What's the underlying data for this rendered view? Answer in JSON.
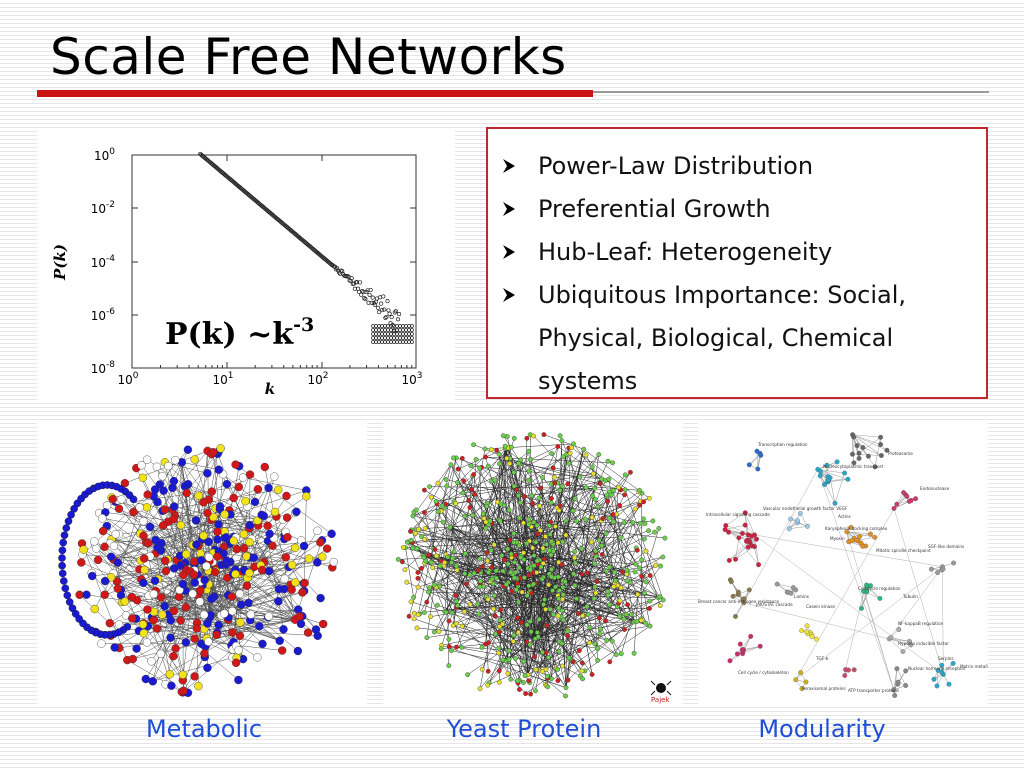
{
  "slide": {
    "title": "Scale Free Networks"
  },
  "plot": {
    "y_axis_label": "P(k)",
    "x_axis_label": "k",
    "formula_main": "P(k) ~k",
    "formula_exponent": "-3",
    "y_ticks": [
      {
        "base": "10",
        "exp": "0"
      },
      {
        "base": "10",
        "exp": "-2"
      },
      {
        "base": "10",
        "exp": "-4"
      },
      {
        "base": "10",
        "exp": "-6"
      },
      {
        "base": "10",
        "exp": "-8"
      }
    ],
    "x_ticks": [
      {
        "base": "10",
        "exp": "0"
      },
      {
        "base": "10",
        "exp": "1"
      },
      {
        "base": "10",
        "exp": "2"
      },
      {
        "base": "10",
        "exp": "3"
      }
    ]
  },
  "bullets": [
    "Power-Law Distribution",
    "Preferential Growth",
    "Hub-Leaf: Heterogeneity",
    "Ubiquitous Importance: Social,",
    "Physical, Biological, Chemical",
    "systems"
  ],
  "bullet_icon": "arrow-bullet-icon",
  "networks": {
    "yeast_logo": "Pajek",
    "modularity_labels": [
      "Transcription regulation",
      "Proteasome",
      "Nucleocytoplasmic transport",
      "Vascular endothelial growth factor VEGF",
      "Endonuclease",
      "Intracellular signaling cascade",
      "Actins",
      "Karyopherin docking complex",
      "Myosin",
      "Mitotic spindle checkpoint",
      "SGF-like domains",
      "Breast cancer anti-estrogen resistance",
      "JAK/STAT cascade",
      "Casein kinase",
      "Lamins",
      "Cell cycle regulation",
      "Tubulin",
      "NF-kappaB regulation",
      "Hypoxia inducible factor",
      "TGF-b",
      "Cell cycle / cytoskeleton",
      "Peroxisomal proteins",
      "ATP transporter proteins",
      "Nuclear hormone receptors",
      "Serpins",
      "Matrix metalloproteases"
    ]
  },
  "captions": [
    "Metabolic",
    "Yeast Protein",
    "Modularity"
  ],
  "colors": {
    "accent_red": "#cc1414",
    "box_border": "#c0282e",
    "caption_blue": "#1f4fd6"
  }
}
